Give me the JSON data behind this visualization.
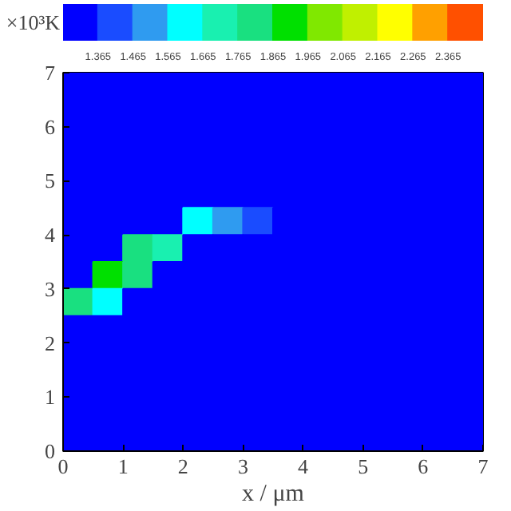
{
  "chart_data": {
    "type": "heatmap",
    "xlabel": "x / μm",
    "clabel": "×10³K",
    "xlim": [
      0,
      7
    ],
    "ylim": [
      0,
      7
    ],
    "xticks": [
      0,
      1,
      2,
      3,
      4,
      5,
      6,
      7
    ],
    "yticks": [
      0,
      1,
      2,
      3,
      4,
      5,
      6,
      7
    ],
    "clim": [
      1.265,
      2.465
    ],
    "cticks": [
      1.365,
      1.465,
      1.565,
      1.665,
      1.765,
      1.865,
      1.965,
      2.065,
      2.165,
      2.265,
      2.365
    ],
    "colors": [
      "#0000ff",
      "#1a4cff",
      "#2f9bf0",
      "#00ffff",
      "#19f0b0",
      "#19e080",
      "#00e000",
      "#80e800",
      "#c0f000",
      "#ffff00",
      "#ffa000",
      "#ff5000"
    ],
    "cells": [
      [
        1.3,
        1.3,
        1.3,
        1.3,
        1.3,
        1.3,
        1.3,
        1.3,
        1.3,
        1.3,
        1.3,
        1.3,
        1.3,
        1.3
      ],
      [
        1.3,
        1.3,
        1.3,
        1.3,
        1.3,
        1.3,
        1.3,
        1.3,
        1.3,
        1.3,
        1.3,
        1.3,
        1.3,
        1.3
      ],
      [
        1.3,
        1.3,
        1.3,
        1.3,
        1.3,
        1.3,
        1.3,
        1.3,
        1.3,
        1.3,
        1.3,
        1.3,
        1.3,
        1.3
      ],
      [
        1.3,
        1.3,
        1.3,
        1.3,
        1.3,
        1.3,
        1.3,
        1.3,
        1.3,
        1.3,
        1.3,
        1.3,
        1.3,
        1.3
      ],
      [
        1.3,
        1.3,
        1.3,
        1.3,
        1.3,
        1.3,
        1.3,
        1.3,
        1.3,
        1.3,
        1.3,
        1.3,
        1.3,
        1.3
      ],
      [
        1.3,
        1.3,
        1.3,
        1.3,
        1.6,
        1.5,
        1.4,
        1.3,
        1.3,
        1.3,
        1.3,
        1.3,
        1.3,
        1.3
      ],
      [
        1.3,
        1.3,
        1.8,
        1.7,
        1.3,
        1.3,
        1.3,
        1.3,
        1.3,
        1.3,
        1.3,
        1.3,
        1.3,
        1.3
      ],
      [
        1.3,
        1.9,
        1.8,
        1.3,
        1.3,
        1.3,
        1.3,
        1.3,
        1.3,
        1.3,
        1.3,
        1.3,
        1.3,
        1.3
      ],
      [
        1.8,
        1.6,
        1.3,
        1.3,
        1.3,
        1.3,
        1.3,
        1.3,
        1.3,
        1.3,
        1.3,
        1.3,
        1.3,
        1.3
      ],
      [
        1.3,
        1.3,
        1.3,
        1.3,
        1.3,
        1.3,
        1.3,
        1.3,
        1.3,
        1.3,
        1.3,
        1.3,
        1.3,
        1.3
      ],
      [
        1.3,
        1.3,
        1.3,
        1.3,
        1.3,
        1.3,
        1.3,
        1.3,
        1.3,
        1.3,
        1.3,
        1.3,
        1.3,
        1.3
      ],
      [
        1.3,
        1.3,
        1.3,
        1.3,
        1.3,
        1.3,
        1.3,
        1.3,
        1.3,
        1.3,
        1.3,
        1.3,
        1.3,
        1.3
      ],
      [
        1.3,
        1.3,
        1.3,
        1.3,
        1.3,
        1.3,
        1.3,
        1.3,
        1.3,
        1.3,
        1.3,
        1.3,
        1.3,
        1.3
      ],
      [
        1.3,
        1.3,
        1.3,
        1.3,
        1.3,
        1.3,
        1.3,
        1.3,
        1.3,
        1.3,
        1.3,
        1.3,
        1.3,
        1.3
      ]
    ]
  }
}
